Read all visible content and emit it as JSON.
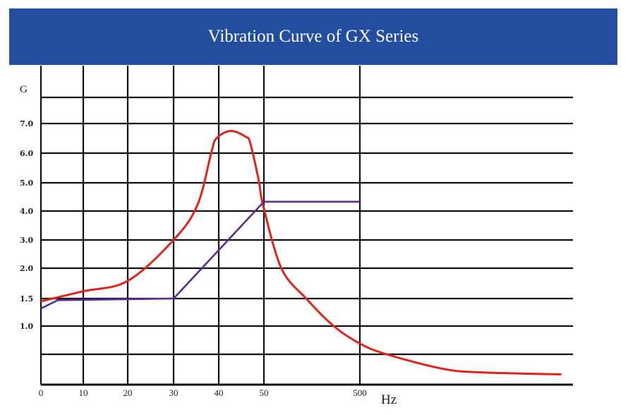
{
  "chart_data": {
    "type": "line",
    "title": "Vibration Curve of GX Series",
    "ylabel": "G",
    "xlabel": "Hz",
    "x_tick_labels": [
      "0",
      "10",
      "20",
      "30",
      "40",
      "50",
      "500"
    ],
    "x_ticks": [
      0,
      10,
      20,
      30,
      40,
      50,
      500
    ],
    "y_tick_labels": [
      "7.0",
      "6.0",
      "5.0",
      "4.0",
      "3.0",
      "2.0",
      "1.5",
      "1.0"
    ],
    "y_ticks": [
      7,
      6,
      5,
      4,
      3,
      2,
      1.5,
      1
    ],
    "grid": true,
    "x_scale": "non-uniform (linear 0–50, logarithmic 50–500 and beyond)",
    "y_scale": "non-uniform",
    "series": [
      {
        "color": "#e0241b",
        "points": [
          [
            0,
            1.45
          ],
          [
            10,
            1.62
          ],
          [
            20,
            1.79
          ],
          [
            30,
            3.0
          ],
          [
            35.3,
            4.22
          ],
          [
            38.4,
            6.05
          ],
          [
            39.5,
            6.5
          ],
          [
            42.6,
            6.75
          ],
          [
            46,
            6.55
          ],
          [
            47,
            6.33
          ],
          [
            48.9,
            5.05
          ],
          [
            49.8,
            4.22
          ],
          [
            76,
            2.0
          ],
          [
            138,
            1.5
          ],
          [
            267,
            1.0
          ],
          [
            500,
            0.69
          ],
          [
            950,
            0.5
          ],
          [
            3700,
            0.26
          ],
          [
            9700,
            0.2
          ],
          [
            63000,
            0.17
          ]
        ]
      },
      {
        "color": "#5b2d8e",
        "points": [
          [
            0,
            1.32
          ],
          [
            4,
            1.47
          ],
          [
            30,
            1.5
          ],
          [
            50,
            4.33
          ],
          [
            500,
            4.33
          ]
        ]
      }
    ]
  }
}
